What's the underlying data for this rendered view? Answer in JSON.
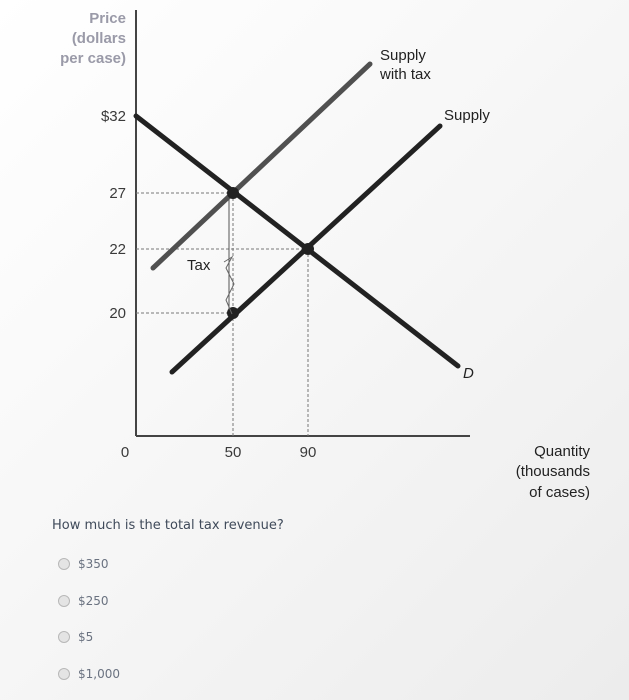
{
  "chart_data": {
    "type": "line",
    "ylabel_lines": [
      "Price",
      "(dollars",
      "per case)"
    ],
    "xlabel_lines": [
      "Quantity",
      "(thousands",
      "of cases)"
    ],
    "x_ticks": [
      {
        "value": 0,
        "label": "0"
      },
      {
        "value": 50,
        "label": "50"
      },
      {
        "value": 90,
        "label": "90"
      }
    ],
    "y_ticks": [
      {
        "value": 32,
        "label": "$32"
      },
      {
        "value": 27,
        "label": "27"
      },
      {
        "value": 22,
        "label": "22"
      },
      {
        "value": 20,
        "label": "20"
      }
    ],
    "series": [
      {
        "name": "D",
        "points": [
          [
            0,
            32
          ],
          [
            150,
            17
          ]
        ]
      },
      {
        "name": "Supply",
        "points": [
          [
            10,
            14
          ],
          [
            140,
            34
          ]
        ]
      },
      {
        "name": "Supply with tax",
        "points": [
          [
            10,
            21
          ],
          [
            140,
            40
          ]
        ]
      }
    ],
    "equilibria": [
      {
        "x": 50,
        "y": 27
      },
      {
        "x": 90,
        "y": 22
      },
      {
        "x": 50,
        "y": 20
      }
    ],
    "tax_label": "Tax",
    "tax_range": [
      20,
      27
    ]
  },
  "question": {
    "text": "How much is the total tax revenue?",
    "options": [
      "$350",
      "$250",
      "$5",
      "$1,000"
    ]
  }
}
